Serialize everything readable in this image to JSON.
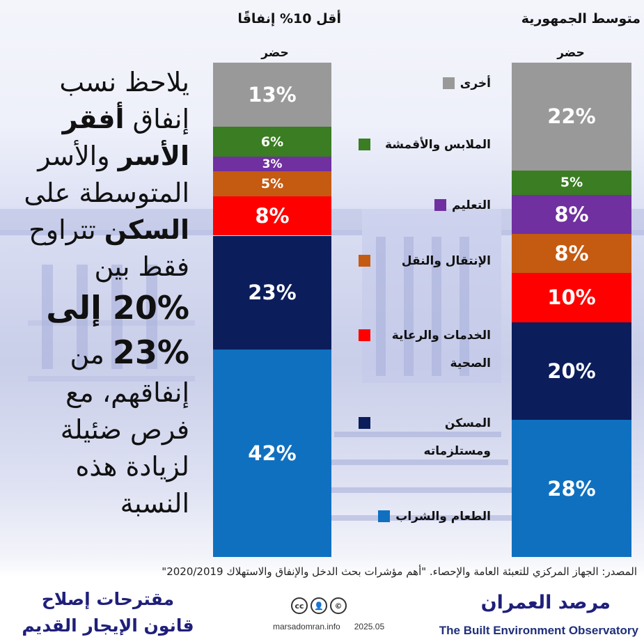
{
  "chart_data": {
    "type": "bar",
    "stacked": true,
    "bars": [
      {
        "name": "أقل 10% إنفاقًا",
        "subtitle": "حضر",
        "segments": [
          {
            "category": "الطعام والشراب",
            "value": 42,
            "label": "42%",
            "color": "#1070c0"
          },
          {
            "category": "المسكن ومستلزماته",
            "value": 23,
            "label": "23%",
            "color": "#0c1d5c"
          },
          {
            "category": "الخدمات والرعاية الصحية",
            "value": 8,
            "label": "8%",
            "color": "#ff0000"
          },
          {
            "category": "الإنتقال والنقل",
            "value": 5,
            "label": "5%",
            "color": "#c55a11"
          },
          {
            "category": "التعليم",
            "value": 3,
            "label": "3%",
            "color": "#7030a0"
          },
          {
            "category": "الملابس والأقمشة",
            "value": 6,
            "label": "6%",
            "color": "#3a7d22"
          },
          {
            "category": "أخرى",
            "value": 13,
            "label": "13%",
            "color": "#999999"
          }
        ]
      },
      {
        "name": "متوسط الجمهورية",
        "subtitle": "حضر",
        "segments": [
          {
            "category": "الطعام والشراب",
            "value": 28,
            "label": "28%",
            "color": "#1070c0"
          },
          {
            "category": "المسكن ومستلزماته",
            "value": 20,
            "label": "20%",
            "color": "#0c1d5c"
          },
          {
            "category": "الخدمات والرعاية الصحية",
            "value": 10,
            "label": "10%",
            "color": "#ff0000"
          },
          {
            "category": "الإنتقال والنقل",
            "value": 8,
            "label": "8%",
            "color": "#c55a11"
          },
          {
            "category": "التعليم",
            "value": 8,
            "label": "8%",
            "color": "#7030a0"
          },
          {
            "category": "الملابس والأقمشة",
            "value": 5,
            "label": "5%",
            "color": "#3a7d22"
          },
          {
            "category": "أخرى",
            "value": 22,
            "label": "22%",
            "color": "#999999"
          }
        ]
      }
    ],
    "legend": [
      {
        "label": "أخرى",
        "color": "#999999"
      },
      {
        "label": "الملابس والأقمشة",
        "color": "#3a7d22"
      },
      {
        "label": "التعليم",
        "color": "#7030a0"
      },
      {
        "label": "الإنتقال والنقل",
        "color": "#c55a11"
      },
      {
        "label": "الخدمات والرعاية الصحية",
        "color": "#ff0000"
      },
      {
        "label": "المسكن ومستلزماته",
        "color": "#0c1d5c"
      },
      {
        "label": "الطعام والشراب",
        "color": "#1070c0"
      }
    ]
  },
  "body_text": {
    "line1": "يلاحظ نسب",
    "line2a": "إنفاق ",
    "line2b": "أفقر",
    "line3a": "الأسر",
    "line3b": " والأسر",
    "line4": "المتوسطة على",
    "line5a": "السكن",
    "line5b": " تتراوح",
    "line6": "فقط بين",
    "line7": "20% إلى",
    "line8a": "23%",
    "line8b": " من",
    "line9": "إنفاقهم، مع",
    "line10": "فرص ضئيلة",
    "line11": "لزيادة هذه",
    "line12": "النسبة"
  },
  "source": "المصدر: الجهاز المركزي للتعبئة العامة والإحصاء. \"أهم مؤشرات بحث الدخل والإنفاق والاستهلاك 2020/2019\"",
  "footer": {
    "proposal_line1": "مقترحات إصلاح",
    "proposal_line2": "قانون الإيجار القديم",
    "site": "marsadomran.info",
    "date": "2025.05",
    "observatory_ar": "مرصد العمران",
    "observatory_en": "The Built Environment Observatory",
    "license_icons": [
      "cc",
      "by",
      "nc"
    ]
  }
}
